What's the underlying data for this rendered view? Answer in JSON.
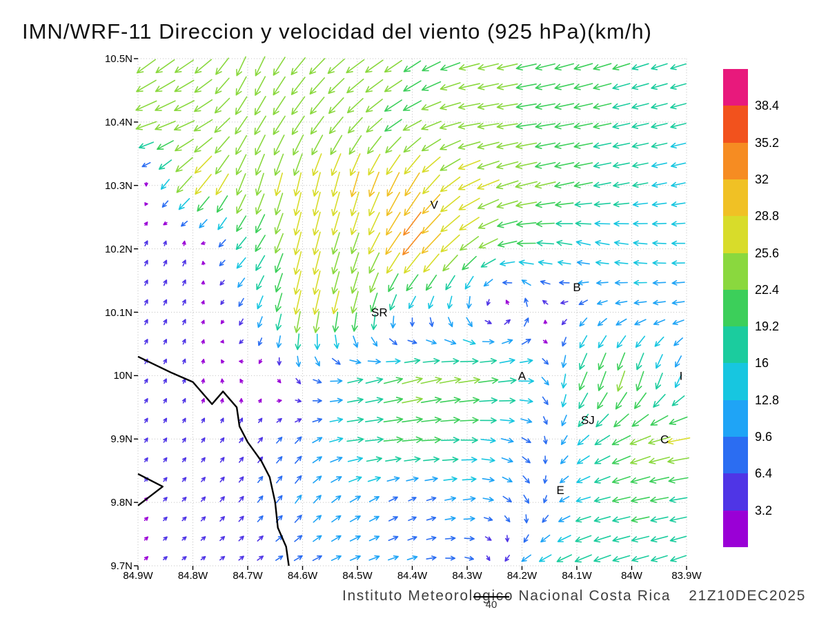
{
  "title": "IMN/WRF-11 Direccion y velocidad del viento (925 hPa)(km/h)",
  "footer": {
    "credit": "Instituto Meteorologico Nacional Costa Rica",
    "timestamp": "21Z10DEC2025",
    "ref_vector_label": "40",
    "ref_vector_kmh": 40
  },
  "chart_data": {
    "type": "scatter",
    "variant": "wind-vector-field",
    "title": "IMN/WRF-11 Direccion y velocidad del viento (925 hPa)(km/h)",
    "xlabel": "longitude (deg W)",
    "ylabel": "latitude (deg N)",
    "lon_range": [
      84.9,
      83.9
    ],
    "lat_range": [
      9.7,
      10.5
    ],
    "grid_on": true,
    "x_tick_lons": [
      84.9,
      84.8,
      84.7,
      84.6,
      84.5,
      84.4,
      84.3,
      84.2,
      84.1,
      84.0,
      83.9
    ],
    "x_tick_labels": [
      "84.9W",
      "84.8W",
      "84.7W",
      "84.6W",
      "84.5W",
      "84.4W",
      "84.3W",
      "84.2W",
      "84.1W",
      "84W",
      "83.9W"
    ],
    "y_tick_lats": [
      10.5,
      10.4,
      10.3,
      10.2,
      10.1,
      10.0,
      9.9,
      9.8,
      9.7
    ],
    "y_tick_labels": [
      "10.5N",
      "10.4N",
      "10.3N",
      "10.2N",
      "10.1N",
      "10N",
      "9.9N",
      "9.8N",
      "9.7N"
    ],
    "speed_levels_kmh": [
      3.2,
      6.4,
      9.6,
      12.8,
      16,
      19.2,
      22.4,
      25.6,
      28.8,
      32,
      35.2,
      38.4
    ],
    "colorbar_labels_top_to_bottom": [
      "38.4",
      "35.2",
      "32",
      "28.8",
      "25.6",
      "22.4",
      "19.2",
      "16",
      "12.8",
      "9.6",
      "6.4",
      "3.2"
    ],
    "palette_low_to_high": [
      "#9a00d6",
      "#4f35e6",
      "#2b6df2",
      "#1fa4f6",
      "#17c6e0",
      "#1bcc9e",
      "#3ccf5a",
      "#8ad83e",
      "#d8dc2a",
      "#f0c125",
      "#f68c22",
      "#f2521d",
      "#e8197c"
    ],
    "grid": {
      "lons_w": [
        84.9,
        84.8,
        84.7,
        84.6,
        84.5,
        84.4,
        84.3,
        84.2,
        84.1,
        84.0,
        83.9
      ],
      "lats_n": [
        10.5,
        10.4,
        10.3,
        10.2,
        10.1,
        10.0,
        9.9,
        9.8,
        9.7
      ],
      "u_kmh": [
        [
          -20,
          -20,
          -8,
          -16,
          -20,
          -18,
          -22,
          -22,
          -20,
          -18,
          -16
        ],
        [
          -24,
          -22,
          -12,
          -14,
          -16,
          -20,
          -24,
          -22,
          -20,
          -18,
          -16
        ],
        [
          4,
          -20,
          -8,
          -6,
          -8,
          -16,
          -24,
          -24,
          -20,
          -16,
          -14
        ],
        [
          2,
          2,
          -12,
          -6,
          -8,
          -22,
          -20,
          -20,
          -14,
          -14,
          -13
        ],
        [
          2,
          2,
          -4,
          -6,
          -6,
          -4,
          2,
          2,
          -6,
          -12,
          -12
        ],
        [
          2,
          1,
          -2,
          4,
          16,
          22,
          24,
          18,
          -8,
          -6,
          -4
        ],
        [
          2,
          2,
          3,
          6,
          18,
          22,
          18,
          10,
          -10,
          -22,
          -26
        ],
        [
          2,
          3,
          4,
          6,
          10,
          6,
          12,
          6,
          -14,
          -20,
          -18
        ],
        [
          2,
          3,
          4,
          8,
          10,
          10,
          8,
          -10,
          -18,
          -18,
          -16
        ]
      ],
      "v_kmh": [
        [
          -16,
          -14,
          -22,
          -18,
          -14,
          -12,
          -6,
          -5,
          -6,
          -6,
          -5
        ],
        [
          -8,
          -10,
          -20,
          -20,
          -16,
          -10,
          -4,
          -3,
          -4,
          -4,
          -4
        ],
        [
          2,
          -22,
          -24,
          -26,
          -28,
          -26,
          -12,
          -6,
          -4,
          -3,
          -3
        ],
        [
          4,
          5,
          -14,
          -26,
          -22,
          -26,
          -16,
          0,
          4,
          2,
          0
        ],
        [
          4,
          4,
          -8,
          -28,
          -24,
          -10,
          -12,
          10,
          -6,
          -2,
          -2
        ],
        [
          3,
          3,
          2,
          -6,
          4,
          6,
          4,
          2,
          -20,
          -24,
          -12
        ],
        [
          3,
          3,
          4,
          6,
          2,
          2,
          0,
          -4,
          -10,
          -10,
          -4
        ],
        [
          2,
          3,
          5,
          8,
          6,
          3,
          2,
          -8,
          -4,
          -4,
          -3
        ],
        [
          2,
          2,
          3,
          4,
          4,
          3,
          -2,
          -6,
          -8,
          -5,
          -6
        ]
      ]
    },
    "stations": [
      {
        "label": "V",
        "lon_w": 84.36,
        "lat_n": 10.27
      },
      {
        "label": "B",
        "lon_w": 84.1,
        "lat_n": 10.14
      },
      {
        "label": "SR",
        "lon_w": 84.46,
        "lat_n": 10.1
      },
      {
        "label": "A",
        "lon_w": 84.2,
        "lat_n": 10.0
      },
      {
        "label": "SJ",
        "lon_w": 84.08,
        "lat_n": 9.93
      },
      {
        "label": "C",
        "lon_w": 83.94,
        "lat_n": 9.9
      },
      {
        "label": "E",
        "lon_w": 84.13,
        "lat_n": 9.82
      },
      {
        "label": "I",
        "lon_w": 83.91,
        "lat_n": 10.0
      }
    ],
    "coastline": [
      [
        [
          84.9,
          10.03
        ],
        [
          84.84,
          10.005
        ],
        [
          84.8,
          9.99
        ],
        [
          84.765,
          9.955
        ],
        [
          84.745,
          9.975
        ],
        [
          84.72,
          9.95
        ],
        [
          84.715,
          9.92
        ],
        [
          84.7,
          9.895
        ],
        [
          84.675,
          9.865
        ],
        [
          84.66,
          9.84
        ],
        [
          84.65,
          9.8
        ],
        [
          84.645,
          9.76
        ],
        [
          84.63,
          9.73
        ],
        [
          84.625,
          9.7
        ]
      ],
      [
        [
          84.9,
          9.845
        ],
        [
          84.855,
          9.825
        ],
        [
          84.9,
          9.795
        ]
      ]
    ]
  }
}
